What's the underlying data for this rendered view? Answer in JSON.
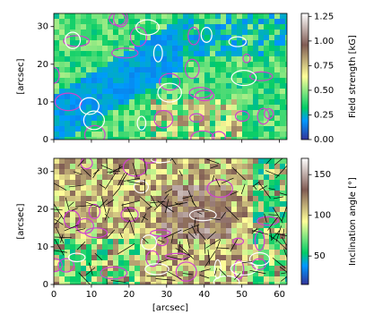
{
  "chart_data": [
    {
      "type": "heatmap",
      "ylabel": "[arcsec]",
      "xlim": [
        0,
        62
      ],
      "xticks": [
        0,
        10,
        20,
        30,
        40,
        50,
        60
      ],
      "ylim": [
        0,
        33.5
      ],
      "yticks": [
        0,
        10,
        20,
        30
      ],
      "colorbar": {
        "label": "Field strength [kG]",
        "lim": [
          0,
          1.28
        ],
        "ticks": [
          {
            "value": 0,
            "label": "0.00"
          },
          0.25,
          {
            "value": 0.5,
            "label": "0.50"
          },
          0.75,
          {
            "value": 1,
            "label": "1.00"
          },
          1.25
        ],
        "colormap": [
          {
            "offset": 0,
            "color": "#333399"
          },
          {
            "offset": 0.15,
            "color": "#0099ff"
          },
          {
            "offset": 0.25,
            "color": "#00cc66"
          },
          {
            "offset": 0.5,
            "color": "#ffff99"
          },
          {
            "offset": 0.75,
            "color": "#805c54"
          },
          {
            "offset": 1,
            "color": "#ffffff"
          }
        ]
      }
    },
    {
      "type": "heatmap",
      "ylabel": "[arcsec]",
      "xlabel": "[arcsec]",
      "xlim": [
        0,
        62
      ],
      "xticks": [
        0,
        10,
        20,
        30,
        40,
        50,
        60
      ],
      "ylim": [
        0,
        33.5
      ],
      "yticks": [
        0,
        10,
        20,
        30
      ],
      "colorbar": {
        "label": "Inclination angle [°]",
        "lim": [
          15,
          170
        ],
        "ticks": [
          50,
          100,
          150
        ],
        "colormap": [
          {
            "offset": 0,
            "color": "#333399"
          },
          {
            "offset": 0.15,
            "color": "#0099ff"
          },
          {
            "offset": 0.25,
            "color": "#00cc66"
          },
          {
            "offset": 0.5,
            "color": "#ffff99"
          },
          {
            "offset": 0.75,
            "color": "#805c54"
          },
          {
            "offset": 1,
            "color": "#ffffff"
          }
        ]
      }
    }
  ]
}
